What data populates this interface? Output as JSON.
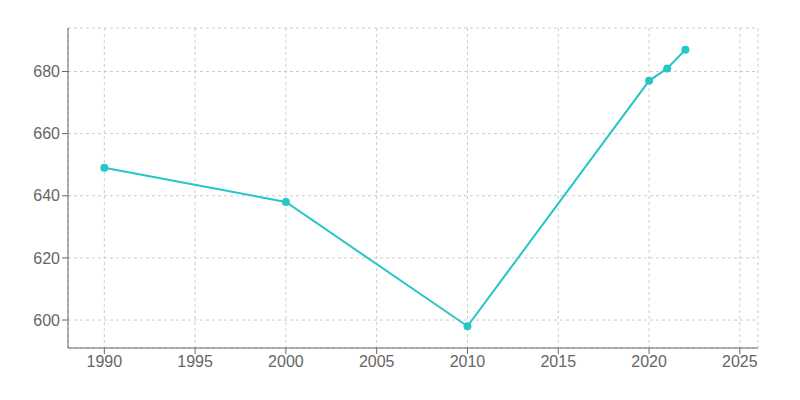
{
  "chart_data": {
    "type": "line",
    "x": [
      1990,
      2000,
      2010,
      2020,
      2021,
      2022
    ],
    "values": [
      649,
      638,
      598,
      677,
      681,
      687
    ],
    "color": "#26C6C6",
    "xlim": [
      1988,
      2026
    ],
    "ylim": [
      591,
      694
    ],
    "xticks": [
      1990,
      1995,
      2000,
      2005,
      2010,
      2015,
      2020,
      2025
    ],
    "yticks": [
      600,
      620,
      640,
      660,
      680
    ],
    "grid": true,
    "marker": "circle"
  }
}
